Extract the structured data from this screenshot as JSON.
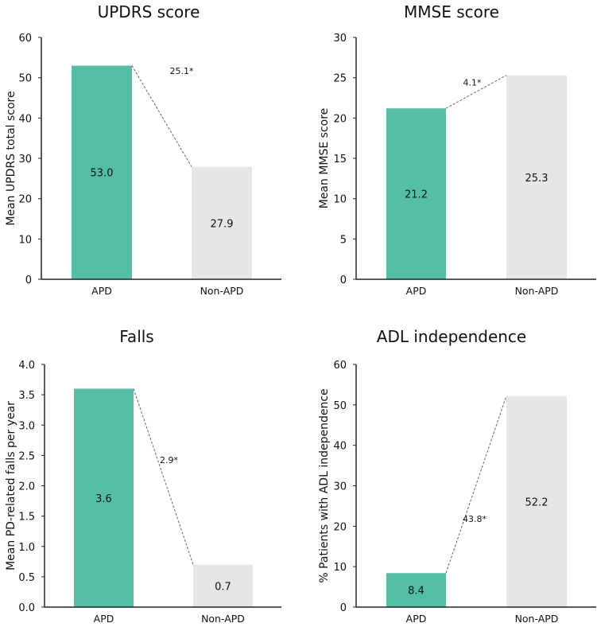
{
  "chart_data": [
    {
      "type": "bar",
      "title": "UPDRS score",
      "xlabel": "",
      "ylabel": "Mean UPDRS total score",
      "categories": [
        "APD",
        "Non-APD"
      ],
      "values": [
        53.0,
        27.9
      ],
      "value_labels": [
        "53.0",
        "27.9"
      ],
      "ylim": [
        0,
        60
      ],
      "yticks": [
        0,
        10,
        20,
        30,
        40,
        50,
        60
      ],
      "ytick_labels": [
        "0",
        "10",
        "20",
        "30",
        "40",
        "50",
        "60"
      ],
      "difference_label": "25.1*",
      "colors": [
        "#55bfa5",
        "#e6e6e6"
      ],
      "grid": false
    },
    {
      "type": "bar",
      "title": "MMSE score",
      "xlabel": "",
      "ylabel": "Mean MMSE score",
      "categories": [
        "APD",
        "Non-APD"
      ],
      "values": [
        21.2,
        25.3
      ],
      "value_labels": [
        "21.2",
        "25.3"
      ],
      "ylim": [
        0,
        30
      ],
      "yticks": [
        0,
        5,
        10,
        15,
        20,
        25,
        30
      ],
      "ytick_labels": [
        "0",
        "5",
        "10",
        "15",
        "20",
        "25",
        "30"
      ],
      "difference_label": "4.1*",
      "colors": [
        "#55bfa5",
        "#e6e6e6"
      ],
      "grid": false
    },
    {
      "type": "bar",
      "title": "Falls",
      "xlabel": "",
      "ylabel": "Mean PD-related falls per year",
      "categories": [
        "APD",
        "Non-APD"
      ],
      "values": [
        3.6,
        0.7
      ],
      "value_labels": [
        "3.6",
        "0.7"
      ],
      "ylim": [
        0,
        4.0
      ],
      "yticks": [
        0,
        0.5,
        1.0,
        1.5,
        2.0,
        2.5,
        3.0,
        3.5,
        4.0
      ],
      "ytick_labels": [
        "0.0",
        "0.5",
        "1.0",
        "1.5",
        "2.0",
        "2.5",
        "3.0",
        "3.5",
        "4.0"
      ],
      "difference_label": "2.9*",
      "colors": [
        "#55bfa5",
        "#e6e6e6"
      ],
      "grid": false
    },
    {
      "type": "bar",
      "title": "ADL independence",
      "xlabel": "",
      "ylabel": "% Patients with ADL independence",
      "categories": [
        "APD",
        "Non-APD"
      ],
      "values": [
        8.4,
        52.2
      ],
      "value_labels": [
        "8.4",
        "52.2"
      ],
      "ylim": [
        0,
        60
      ],
      "yticks": [
        0,
        10,
        20,
        30,
        40,
        50,
        60
      ],
      "ytick_labels": [
        "0",
        "10",
        "20",
        "30",
        "40",
        "50",
        "60"
      ],
      "difference_label": "43.8*",
      "colors": [
        "#55bfa5",
        "#e6e6e6"
      ],
      "grid": false
    }
  ]
}
